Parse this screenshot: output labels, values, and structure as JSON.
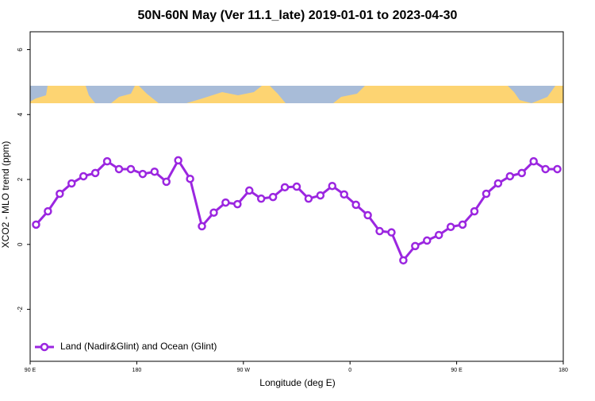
{
  "chart_data": {
    "type": "line",
    "title": "50N-60N May (Ver 11.1_late)   2019-01-01 to 2023-04-30",
    "x_label": "Longitude (deg E)",
    "y_label": "XCO2 - MLO trend (ppm)",
    "x": [
      95,
      105,
      115,
      125,
      135,
      145,
      155,
      165,
      175,
      185,
      195,
      205,
      215,
      225,
      235,
      245,
      255,
      265,
      275,
      285,
      295,
      305,
      315,
      325,
      335,
      345,
      355,
      365,
      375,
      385,
      395,
      405,
      415,
      425,
      435,
      445,
      455,
      465,
      475,
      485,
      495,
      505,
      515,
      525,
      535
    ],
    "series": [
      {
        "name": "Land (Nadir&Glint) and Ocean (Glint)",
        "color": "#9b26e0",
        "values": [
          0.61,
          1.02,
          1.56,
          1.88,
          2.1,
          2.2,
          2.56,
          2.32,
          2.32,
          2.17,
          2.24,
          1.93,
          2.59,
          2.02,
          0.56,
          0.98,
          1.29,
          1.24,
          1.66,
          1.41,
          1.46,
          1.76,
          1.78,
          1.41,
          1.51,
          1.8,
          1.54,
          1.22,
          0.9,
          0.41,
          0.37,
          -0.49,
          -0.05,
          0.12,
          0.29,
          0.54,
          0.61,
          1.02,
          1.56,
          1.88,
          2.1,
          2.2,
          2.56,
          2.32,
          2.32
        ]
      }
    ],
    "xlim": [
      90,
      540
    ],
    "xticks": [
      {
        "value": 90,
        "label": "90 E"
      },
      180,
      {
        "value": 270,
        "label": "90 W"
      },
      {
        "value": 360,
        "label": "0"
      },
      {
        "value": 450,
        "label": "90 E"
      },
      {
        "value": 540,
        "label": "180"
      }
    ],
    "ylim": [
      -3.6,
      6.55
    ],
    "yticks": [
      -2,
      0,
      2,
      4,
      6
    ],
    "legend": "bottom-left"
  }
}
